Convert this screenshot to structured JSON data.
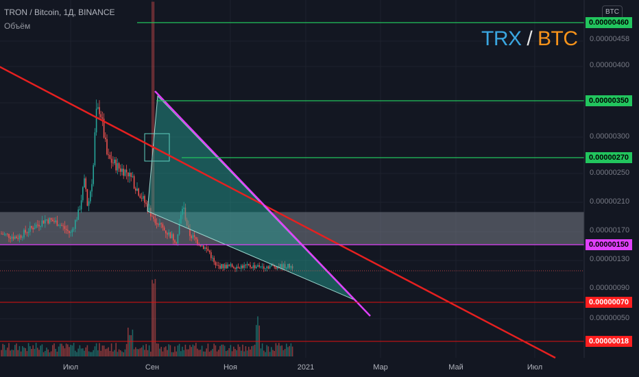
{
  "header": {
    "symbol_line": "TRON / Bitcoin, 1Д, BINANCE",
    "volume_label": "Объём",
    "currency_badge": "BTC"
  },
  "pair_label": {
    "base": "TRX",
    "separator": "/",
    "quote": "BTC",
    "colors": {
      "base": "#3aa6e0",
      "quote": "#f7931a"
    }
  },
  "colors": {
    "background": "#131722",
    "candle_up": "#26a69a",
    "candle_down": "#ef5350",
    "support_green": "#22c55e",
    "magenta": "#e040fb",
    "trend_red": "#e62020",
    "zone_grey": "#787b86",
    "triangle_fill": "#26a69a"
  },
  "chart_data": {
    "type": "candlestick",
    "x_ticks": [
      "Июл",
      "Сен",
      "Ноя",
      "2021",
      "Мар",
      "Май",
      "Июл"
    ],
    "y_ticks": [
      "0.00000458",
      "0.00000400",
      "0.00000300",
      "0.00000250",
      "0.00000210",
      "0.00000170",
      "0.00000130",
      "0.00000090",
      "0.00000050"
    ],
    "ylim": [
      1e-07,
      4.7e-06
    ],
    "price_labels": [
      {
        "text": "0.00000460",
        "value": 4.6e-06,
        "color": "#22c55e"
      },
      {
        "text": "0.00000350",
        "value": 3.5e-06,
        "color": "#22c55e"
      },
      {
        "text": "0.00000270",
        "value": 2.7e-06,
        "color": "#22c55e"
      },
      {
        "text": "0.00000150",
        "value": 1.5e-06,
        "color": "#e040fb"
      },
      {
        "text": "0.00000070",
        "value": 7e-07,
        "color": "#ff1f1f"
      },
      {
        "text": "0.00000018",
        "value": 1.8e-07,
        "color": "#ff1f1f"
      }
    ],
    "resistance_zone": [
      1.5e-06,
      1.95e-06
    ],
    "approx_close_path": [
      {
        "m": 0.0,
        "v": 1.65e-06
      },
      {
        "m": 0.4,
        "v": 1.6e-06
      },
      {
        "m": 0.8,
        "v": 1.75e-06
      },
      {
        "m": 1.1,
        "v": 1.85e-06
      },
      {
        "m": 1.4,
        "v": 1.8e-06
      },
      {
        "m": 1.7,
        "v": 1.65e-06
      },
      {
        "m": 1.9,
        "v": 1.95e-06
      },
      {
        "m": 2.05,
        "v": 2.4e-06
      },
      {
        "m": 2.12,
        "v": 2e-06
      },
      {
        "m": 2.25,
        "v": 2.5e-06
      },
      {
        "m": 2.32,
        "v": 3.3e-06
      },
      {
        "m": 2.42,
        "v": 3.4e-06
      },
      {
        "m": 2.6,
        "v": 2.7e-06
      },
      {
        "m": 2.9,
        "v": 2.55e-06
      },
      {
        "m": 3.1,
        "v": 2.5e-06
      },
      {
        "m": 3.4,
        "v": 2.2e-06
      },
      {
        "m": 3.7,
        "v": 1.9e-06
      },
      {
        "m": 4.0,
        "v": 1.7e-06
      },
      {
        "m": 4.3,
        "v": 1.55e-06
      },
      {
        "m": 4.45,
        "v": 2.05e-06
      },
      {
        "m": 4.6,
        "v": 1.65e-06
      },
      {
        "m": 4.9,
        "v": 1.5e-06
      },
      {
        "m": 5.1,
        "v": 1.4e-06
      },
      {
        "m": 5.25,
        "v": 1.2e-06
      }
    ]
  }
}
